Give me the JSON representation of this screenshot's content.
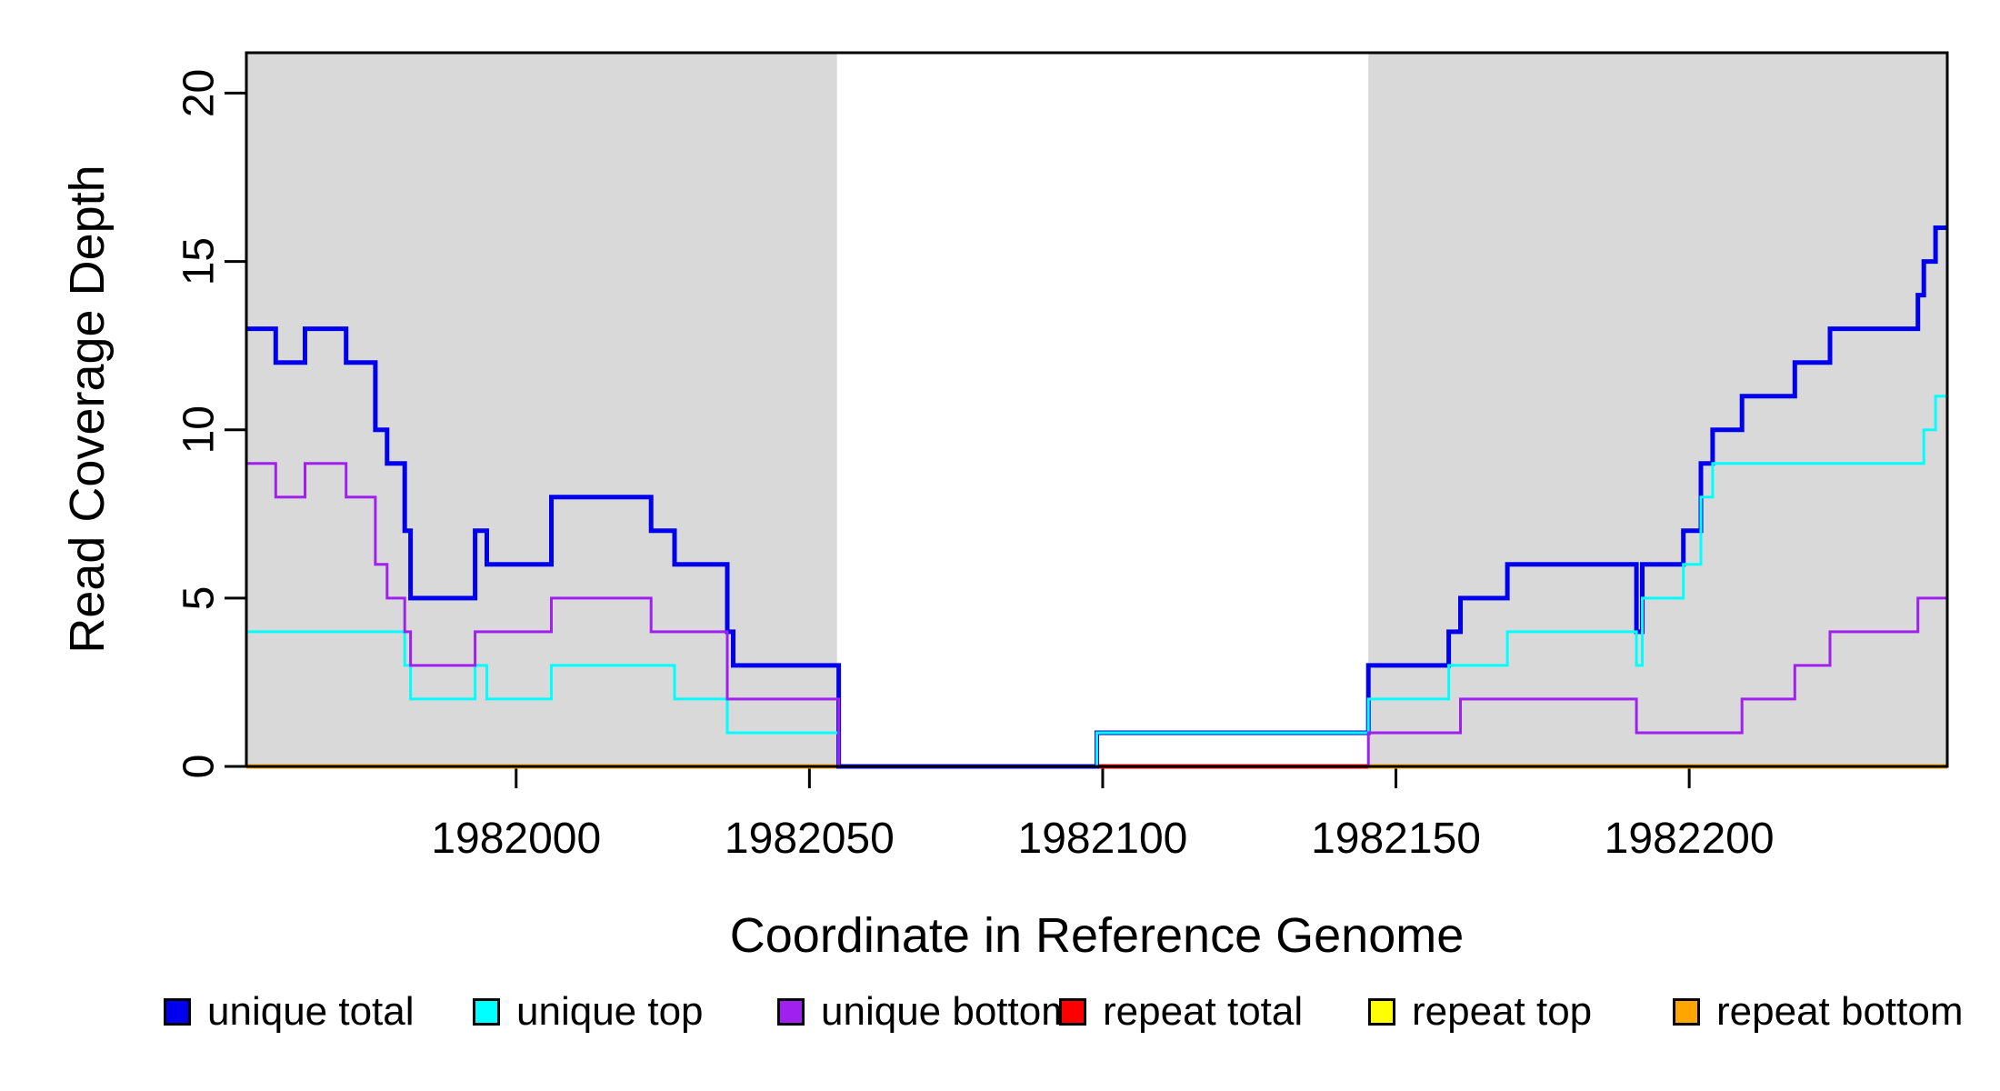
{
  "chart_data": {
    "type": "step",
    "title": "",
    "xlabel": "Coordinate in Reference Genome",
    "ylabel": "Read Coverage Depth",
    "xlim": [
      1981954,
      1982244
    ],
    "ylim": [
      0,
      21.2
    ],
    "xticks": [
      1982000,
      1982050,
      1982100,
      1982150,
      1982200
    ],
    "xtick_labels": [
      "1982000",
      "1982050",
      "1982100",
      "1982150",
      "1982200"
    ],
    "yticks": [
      0,
      5,
      10,
      15,
      20
    ],
    "ytick_labels": [
      "0",
      "5",
      "10",
      "15",
      "20"
    ],
    "grid": false,
    "legend_position": "bottom",
    "background_color": "#ffffff",
    "shade_color": "#d9d9d9",
    "axis_color": "#000000",
    "shaded_regions": [
      [
        1981954,
        1982054.7
      ],
      [
        1982145.3,
        1982244
      ]
    ],
    "draw_order": [
      "repeat bottom",
      "repeat total",
      "unique total",
      "unique top",
      "unique bottom"
    ],
    "series": [
      {
        "name": "unique total",
        "color": "#0000ee",
        "line_width": 5,
        "segments": [
          [
            1981954,
            1981959,
            13
          ],
          [
            1981959,
            1981964,
            12
          ],
          [
            1981964,
            1981971,
            13
          ],
          [
            1981971,
            1981976,
            12
          ],
          [
            1981976,
            1981978,
            10
          ],
          [
            1981978,
            1981981,
            9
          ],
          [
            1981981,
            1981982,
            7
          ],
          [
            1981982,
            1981993,
            5
          ],
          [
            1981993,
            1981995,
            7
          ],
          [
            1981995,
            1982006,
            6
          ],
          [
            1982006,
            1982023,
            8
          ],
          [
            1982023,
            1982027,
            7
          ],
          [
            1982027,
            1982036,
            6
          ],
          [
            1982036,
            1982037,
            4
          ],
          [
            1982037,
            1982055,
            3
          ],
          [
            1982055,
            1982099,
            0
          ],
          [
            1982099,
            1982145.3,
            1
          ],
          [
            1982145.3,
            1982159,
            3
          ],
          [
            1982159,
            1982161,
            4
          ],
          [
            1982161,
            1982169,
            5
          ],
          [
            1982169,
            1982191,
            6
          ],
          [
            1982191,
            1982192,
            4
          ],
          [
            1982192,
            1982199,
            6
          ],
          [
            1982199,
            1982202,
            7
          ],
          [
            1982202,
            1982204,
            9
          ],
          [
            1982204,
            1982209,
            10
          ],
          [
            1982209,
            1982218,
            11
          ],
          [
            1982218,
            1982224,
            12
          ],
          [
            1982224,
            1982239,
            13
          ],
          [
            1982239,
            1982240,
            14
          ],
          [
            1982240,
            1982242,
            15
          ],
          [
            1982242,
            1982244,
            16
          ]
        ]
      },
      {
        "name": "unique top",
        "color": "#00ffff",
        "line_width": 3,
        "segments": [
          [
            1981954,
            1981981,
            4
          ],
          [
            1981981,
            1981982,
            3
          ],
          [
            1981982,
            1981993,
            2
          ],
          [
            1981993,
            1981995,
            3
          ],
          [
            1981995,
            1982006,
            2
          ],
          [
            1982006,
            1982027,
            3
          ],
          [
            1982027,
            1982036,
            2
          ],
          [
            1982036,
            1982055,
            1
          ],
          [
            1982055,
            1982099,
            0
          ],
          [
            1982099,
            1982145.3,
            1
          ],
          [
            1982145.3,
            1982159,
            2
          ],
          [
            1982159,
            1982169,
            3
          ],
          [
            1982169,
            1982191,
            4
          ],
          [
            1982191,
            1982192,
            3
          ],
          [
            1982192,
            1982199,
            5
          ],
          [
            1982199,
            1982202,
            6
          ],
          [
            1982202,
            1982204,
            8
          ],
          [
            1982204,
            1982240,
            9
          ],
          [
            1982240,
            1982242,
            10
          ],
          [
            1982242,
            1982244,
            11
          ]
        ]
      },
      {
        "name": "unique bottom",
        "color": "#a020f0",
        "line_width": 3,
        "segments": [
          [
            1981954,
            1981959,
            9
          ],
          [
            1981959,
            1981964,
            8
          ],
          [
            1981964,
            1981971,
            9
          ],
          [
            1981971,
            1981976,
            8
          ],
          [
            1981976,
            1981978,
            6
          ],
          [
            1981978,
            1981981,
            5
          ],
          [
            1981981,
            1981982,
            4
          ],
          [
            1981982,
            1981993,
            3
          ],
          [
            1981993,
            1982006,
            4
          ],
          [
            1982006,
            1982023,
            5
          ],
          [
            1982023,
            1982036,
            4
          ],
          [
            1982036,
            1982055,
            2
          ],
          [
            1982055,
            1982145.3,
            0
          ],
          [
            1982145.3,
            1982161,
            1
          ],
          [
            1982161,
            1982191,
            2
          ],
          [
            1982191,
            1982209,
            1
          ],
          [
            1982209,
            1982218,
            2
          ],
          [
            1982218,
            1982224,
            3
          ],
          [
            1982224,
            1982239,
            4
          ],
          [
            1982239,
            1982244,
            5
          ]
        ]
      },
      {
        "name": "repeat total",
        "color": "#ff0000",
        "line_width": 5,
        "segments": [
          [
            1982099,
            1982145.3,
            0
          ]
        ]
      },
      {
        "name": "repeat top",
        "color": "#ffff00",
        "line_width": 3,
        "segments": []
      },
      {
        "name": "repeat bottom",
        "color": "#ffa500",
        "line_width": 5,
        "segments": [
          [
            1981954,
            1982054.7,
            0
          ],
          [
            1982145.3,
            1982244,
            0
          ]
        ]
      }
    ],
    "legend": [
      {
        "label": "unique total",
        "color": "#0000ee"
      },
      {
        "label": "unique top",
        "color": "#00ffff"
      },
      {
        "label": "unique bottom",
        "color": "#a020f0"
      },
      {
        "label": "repeat total",
        "color": "#ff0000"
      },
      {
        "label": "repeat top",
        "color": "#ffff00"
      },
      {
        "label": "repeat bottom",
        "color": "#ffa500"
      }
    ]
  }
}
